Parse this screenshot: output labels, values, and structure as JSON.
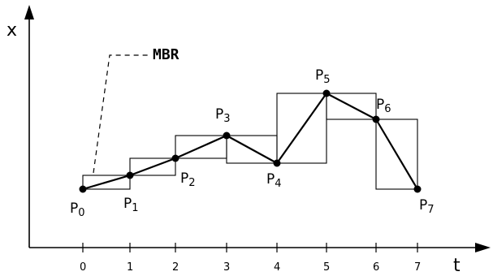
{
  "axes": {
    "x_label": "x",
    "t_label": "t"
  },
  "t_ticks": [
    "0",
    "1",
    "2",
    "3",
    "4",
    "5",
    "6",
    "7"
  ],
  "annotation": {
    "label": "MBR"
  },
  "points": [
    {
      "p": "P",
      "sub": "0"
    },
    {
      "p": "P",
      "sub": "1"
    },
    {
      "p": "P",
      "sub": "2"
    },
    {
      "p": "P",
      "sub": "3"
    },
    {
      "p": "P",
      "sub": "4"
    },
    {
      "p": "P",
      "sub": "5"
    },
    {
      "p": "P",
      "sub": "6"
    },
    {
      "p": "P",
      "sub": "7"
    }
  ]
}
